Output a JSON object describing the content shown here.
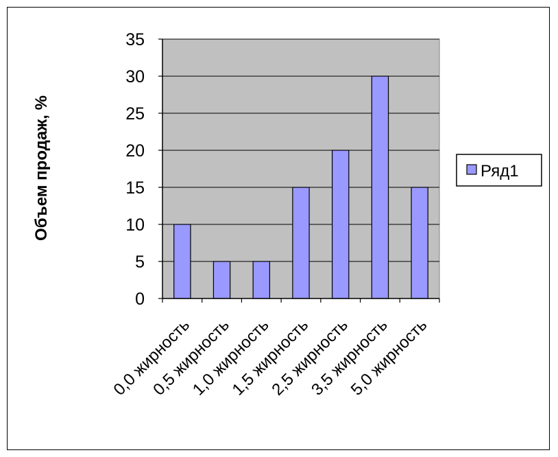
{
  "chart_data": {
    "type": "bar",
    "ylabel": "Объем продаж, %",
    "xlabel": "",
    "ylim": [
      0,
      35
    ],
    "y_ticks": [
      0,
      5,
      10,
      15,
      20,
      25,
      30,
      35
    ],
    "categories": [
      "0,0 жирность",
      "0,5 жирность",
      "1,0 жирность",
      "1,5 жирность",
      "2,5 жирность",
      "3,5 жирность",
      "5,0 жирность"
    ],
    "series": [
      {
        "name": "Ряд1",
        "values": [
          10,
          5,
          5,
          15,
          20,
          30,
          15
        ]
      }
    ],
    "grid": true,
    "legend_position": "right"
  },
  "colors": {
    "plot_background": "#c0c0c0",
    "bar_fill": "#9999ff",
    "bar_stroke": "#000000",
    "gridline": "#000000"
  }
}
